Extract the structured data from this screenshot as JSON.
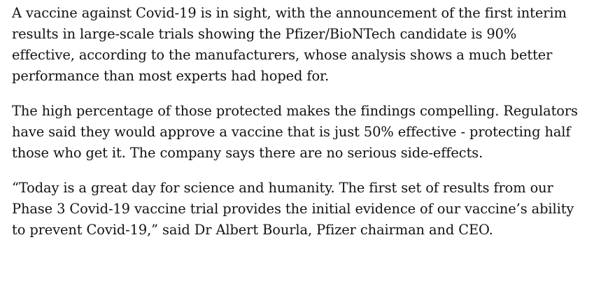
{
  "article": {
    "paragraphs": [
      "A vaccine against Covid-19 is in sight, with the announcement of the first interim results in large-scale trials showing the Pfizer/BioNTech candidate is 90% effective, according to the manufacturers, whose analysis shows a much better performance than most experts had hoped for.",
      "The high percentage of those protected makes the findings compelling. Regulators have said they would approve a vaccine that is just 50% effective - protecting half those who get it. The company says there are no serious side-effects.",
      "“Today is a great day for science and humanity. The first set of results from our Phase 3 Covid-19 vaccine trial provides the initial evidence of our vaccine’s ability to prevent Covid-19,” said Dr Albert Bourla, Pfizer chairman and CEO."
    ]
  }
}
